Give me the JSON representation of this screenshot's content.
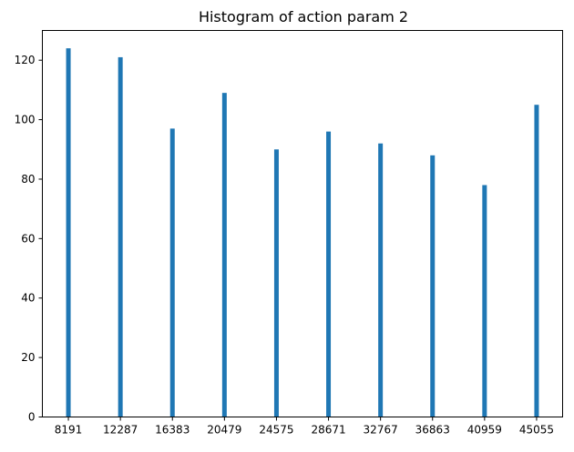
{
  "chart_data": {
    "type": "bar",
    "title": "Histogram of action param 2",
    "xlabel": "",
    "ylabel": "",
    "categories": [
      "8191",
      "12287",
      "16383",
      "20479",
      "24575",
      "28671",
      "32767",
      "36863",
      "40959",
      "45055"
    ],
    "x": [
      8191,
      12287,
      16383,
      20479,
      24575,
      28671,
      32767,
      36863,
      40959,
      45055
    ],
    "values": [
      124,
      121,
      97,
      109,
      90,
      96,
      92,
      88,
      78,
      105
    ],
    "ylim": [
      0,
      130
    ],
    "yticks": [
      0,
      20,
      40,
      60,
      80,
      100,
      120
    ],
    "grid": false,
    "bar_color": "#1f77b4"
  }
}
